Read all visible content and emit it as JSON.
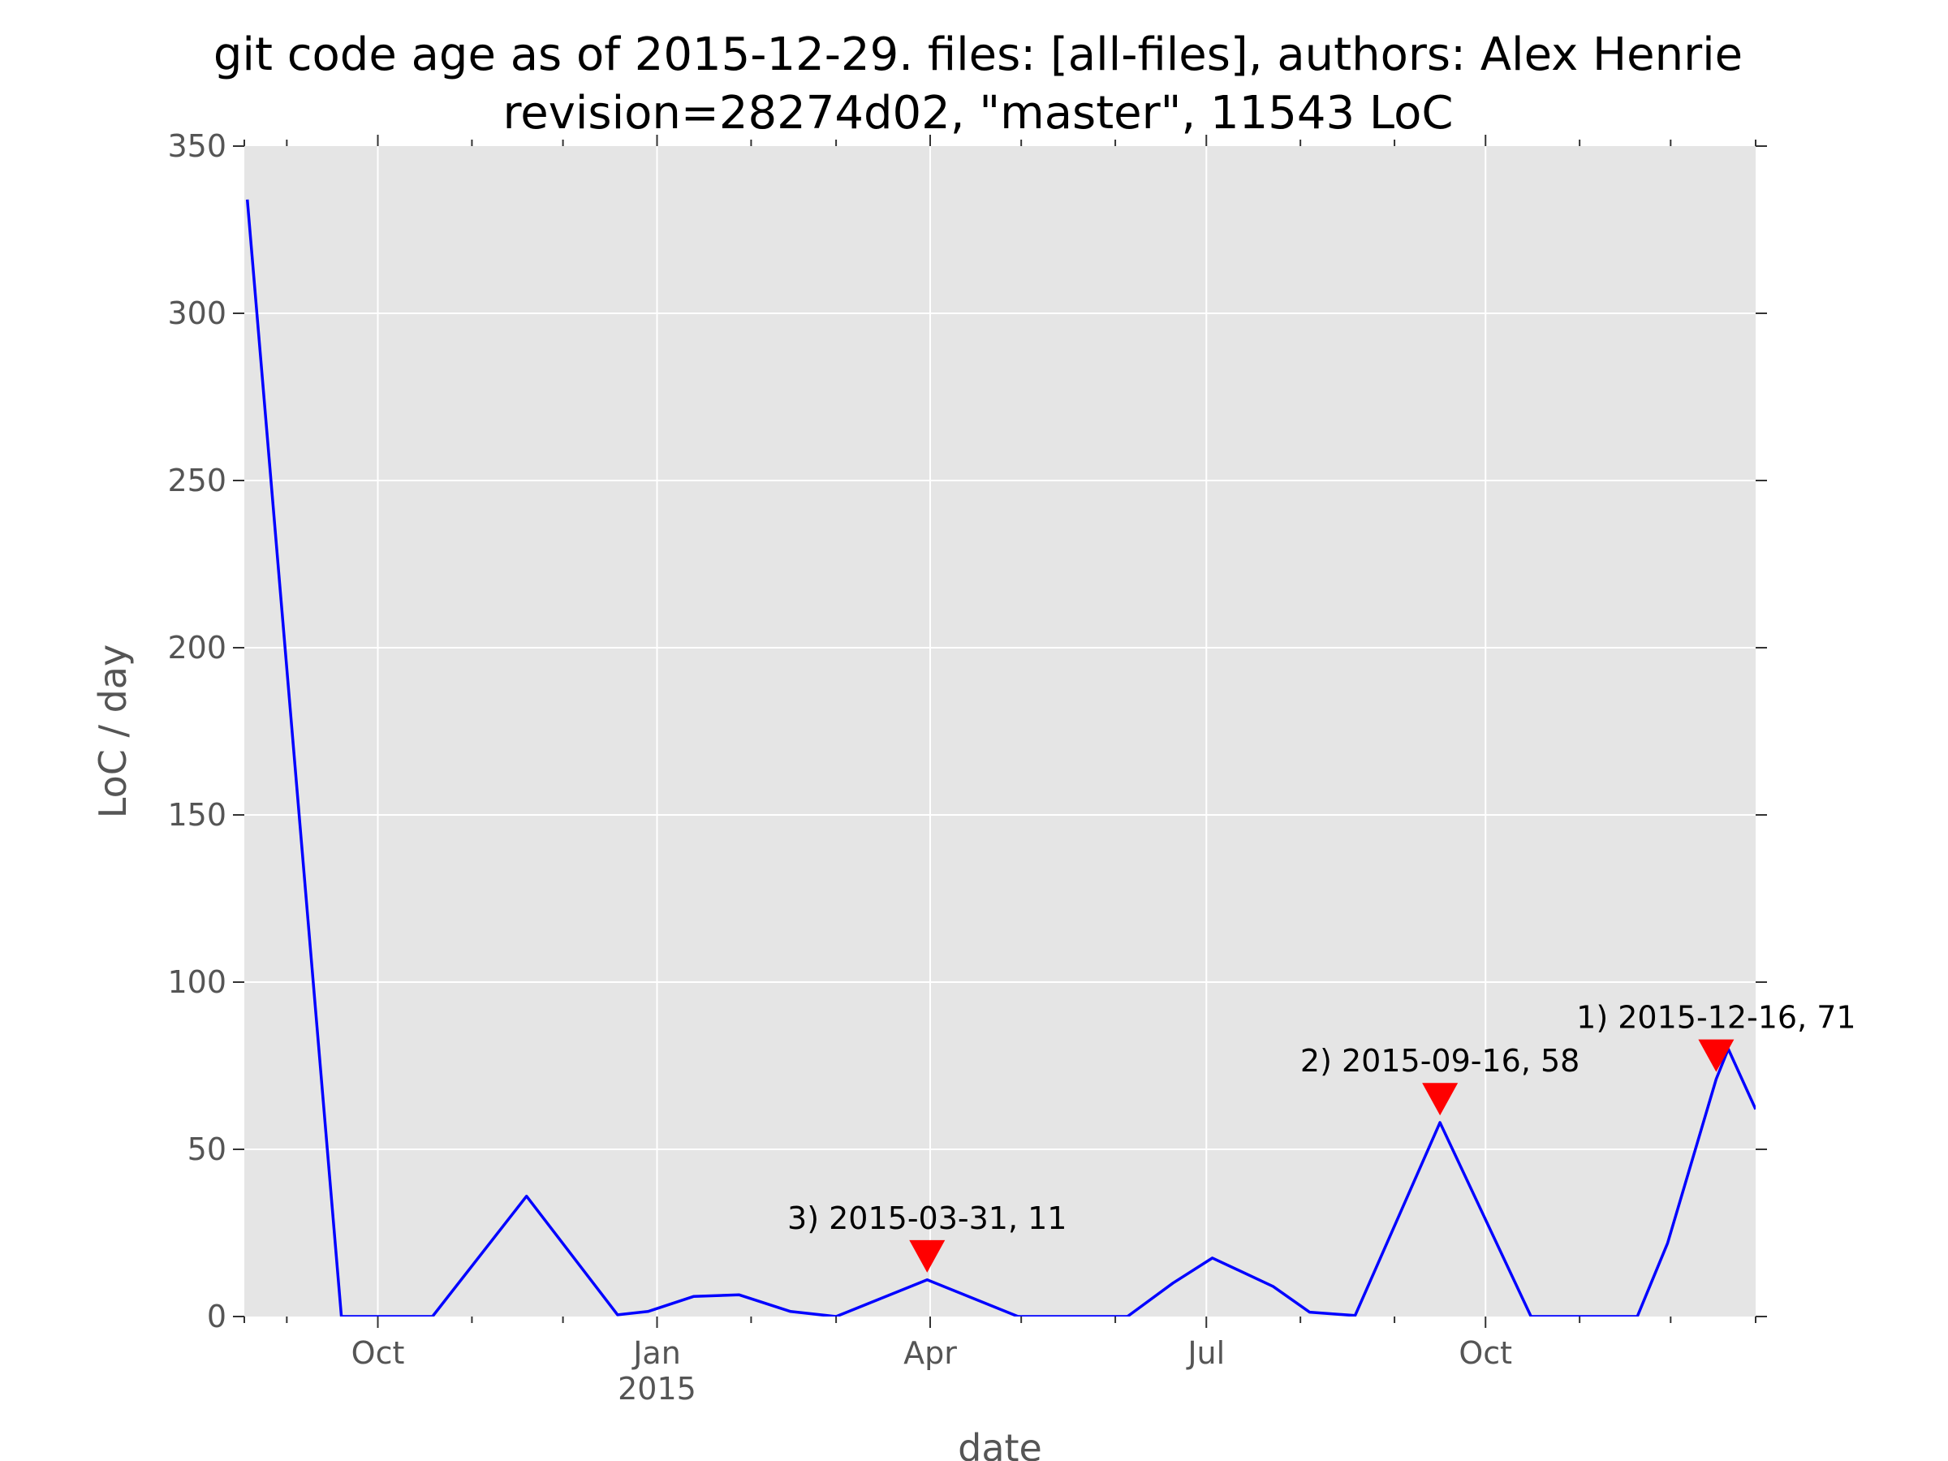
{
  "chart_data": {
    "type": "line",
    "title": [
      "git code age as of 2015-12-29. files: [all-files], authors: Alex Henrie",
      "revision=28274d02, \"master\", 11543 LoC"
    ],
    "xlabel": "date",
    "ylabel": "LoC / day",
    "xlim": [
      "2014-08-18",
      "2015-12-29"
    ],
    "ylim": [
      0,
      350
    ],
    "grid": true,
    "y_ticks": [
      0,
      50,
      100,
      150,
      200,
      250,
      300,
      350
    ],
    "x_ticks": [
      {
        "date": "2014-10-01",
        "label": "Oct",
        "sublabel": ""
      },
      {
        "date": "2015-01-01",
        "label": "Jan",
        "sublabel": "2015"
      },
      {
        "date": "2015-04-01",
        "label": "Apr",
        "sublabel": ""
      },
      {
        "date": "2015-07-01",
        "label": "Jul",
        "sublabel": ""
      },
      {
        "date": "2015-10-01",
        "label": "Oct",
        "sublabel": ""
      }
    ],
    "x_minor_ticks": [
      "2014-08-18",
      "2014-09-01",
      "2014-11-01",
      "2014-12-01",
      "2015-02-01",
      "2015-03-01",
      "2015-05-01",
      "2015-06-01",
      "2015-08-01",
      "2015-09-01",
      "2015-11-01",
      "2015-12-01",
      "2015-12-29"
    ],
    "series": [
      {
        "color": "#0000ff",
        "points": [
          {
            "x": "2014-08-19",
            "y": 334
          },
          {
            "x": "2014-09-19",
            "y": 0
          },
          {
            "x": "2014-10-19",
            "y": 0
          },
          {
            "x": "2014-11-19",
            "y": 36
          },
          {
            "x": "2014-12-19",
            "y": 0.5
          },
          {
            "x": "2014-12-29",
            "y": 1.5
          },
          {
            "x": "2015-01-13",
            "y": 6
          },
          {
            "x": "2015-01-28",
            "y": 6.5
          },
          {
            "x": "2015-02-14",
            "y": 1.5
          },
          {
            "x": "2015-03-01",
            "y": 0
          },
          {
            "x": "2015-03-31",
            "y": 11
          },
          {
            "x": "2015-04-30",
            "y": 0
          },
          {
            "x": "2015-06-05",
            "y": 0
          },
          {
            "x": "2015-06-20",
            "y": 10
          },
          {
            "x": "2015-07-03",
            "y": 17.5
          },
          {
            "x": "2015-07-23",
            "y": 9
          },
          {
            "x": "2015-08-04",
            "y": 1.3
          },
          {
            "x": "2015-08-19",
            "y": 0.3
          },
          {
            "x": "2015-09-16",
            "y": 58
          },
          {
            "x": "2015-10-16",
            "y": 0
          },
          {
            "x": "2015-11-20",
            "y": 0
          },
          {
            "x": "2015-11-30",
            "y": 22
          },
          {
            "x": "2015-12-16",
            "y": 71
          },
          {
            "x": "2015-12-20",
            "y": 80
          },
          {
            "x": "2015-12-29",
            "y": 62
          }
        ]
      }
    ],
    "annotations": [
      {
        "x": "2015-12-16",
        "marker_y": 78,
        "text": "1) 2015-12-16, 71",
        "color": "#ff0000"
      },
      {
        "x": "2015-09-16",
        "marker_y": 65,
        "text": "2) 2015-09-16, 58",
        "color": "#ff0000"
      },
      {
        "x": "2015-03-31",
        "marker_y": 18,
        "text": "3) 2015-03-31, 11",
        "color": "#ff0000"
      }
    ],
    "colors": {
      "plot_background": "#e5e5e5",
      "grid": "#ffffff",
      "line": "#0000ff",
      "marker": "#ff0000",
      "tick_label": "#555555"
    }
  }
}
